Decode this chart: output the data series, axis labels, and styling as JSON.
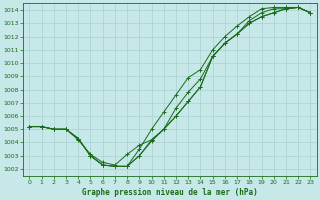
{
  "title": "Graphe pression niveau de la mer (hPa)",
  "bg_color": "#c6e8e8",
  "line_color": "#1a6b1a",
  "grid_color": "#a8d0d0",
  "xlim": [
    -0.5,
    23.5
  ],
  "ylim": [
    1001.5,
    1014.5
  ],
  "xtick_labels": [
    "0",
    "1",
    "2",
    "3",
    "4",
    "5",
    "6",
    "7",
    "8",
    "9",
    "10",
    "11",
    "12",
    "13",
    "14",
    "15",
    "16",
    "17",
    "18",
    "19",
    "20",
    "21",
    "22",
    "23"
  ],
  "xticks": [
    0,
    1,
    2,
    3,
    4,
    5,
    6,
    7,
    8,
    9,
    10,
    11,
    12,
    13,
    14,
    15,
    16,
    17,
    18,
    19,
    20,
    21,
    22,
    23
  ],
  "yticks": [
    1002,
    1003,
    1004,
    1005,
    1006,
    1007,
    1008,
    1009,
    1010,
    1011,
    1012,
    1013,
    1014
  ],
  "series": [
    [
      1005.2,
      1005.2,
      1005.0,
      1005.0,
      1004.3,
      1003.0,
      1002.3,
      1002.2,
      1002.2,
      1003.0,
      1004.1,
      1005.0,
      1006.0,
      1007.1,
      1008.2,
      1010.5,
      1011.5,
      1012.2,
      1013.0,
      1013.5,
      1013.8,
      1014.1,
      1014.2,
      1013.8
    ],
    [
      1005.2,
      1005.2,
      1005.0,
      1005.0,
      1004.3,
      1003.0,
      1002.3,
      1002.2,
      1002.2,
      1003.0,
      1004.2,
      1005.0,
      1006.6,
      1007.8,
      1008.8,
      1010.5,
      1011.5,
      1012.2,
      1013.2,
      1013.8,
      1014.1,
      1014.1,
      1014.2,
      1013.8
    ],
    [
      1005.2,
      1005.2,
      1005.0,
      1005.0,
      1004.3,
      1003.0,
      1002.3,
      1002.2,
      1002.2,
      1003.5,
      1005.0,
      1006.3,
      1007.6,
      1008.9,
      1009.5,
      1011.0,
      1012.0,
      1012.8,
      1013.5,
      1014.1,
      1014.2,
      1014.2,
      1014.2,
      1013.8
    ],
    [
      1005.2,
      1005.2,
      1005.0,
      1005.0,
      1004.2,
      1003.1,
      1002.5,
      1002.3,
      1003.1,
      1003.8,
      1004.2,
      1005.0,
      1006.0,
      1007.1,
      1008.2,
      1010.5,
      1011.5,
      1012.2,
      1013.0,
      1013.5,
      1013.8,
      1014.1,
      1014.2,
      1013.8
    ]
  ]
}
